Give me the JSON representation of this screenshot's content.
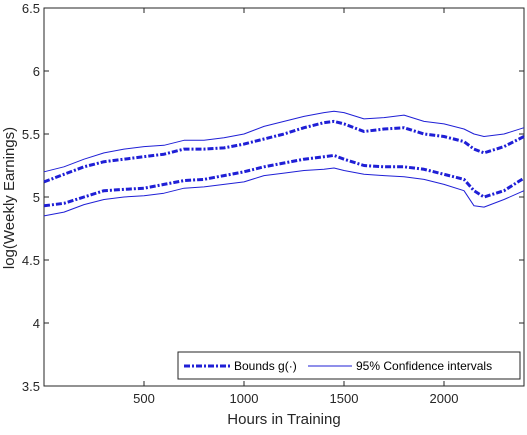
{
  "chart_data": {
    "type": "line",
    "title": "",
    "xlabel": "Hours in Training",
    "ylabel": "log(Weekly Earnings)",
    "xlim": [
      0,
      2400
    ],
    "ylim": [
      3.5,
      6.5
    ],
    "x_ticks": [
      500,
      1000,
      1500,
      2000
    ],
    "y_ticks": [
      3.5,
      4,
      4.5,
      5,
      5.5,
      6,
      6.5
    ],
    "x_tick_labels": [
      "500",
      "1000",
      "1500",
      "2000"
    ],
    "y_tick_labels": [
      "3.5",
      "4",
      "4.5",
      "5",
      "5.5",
      "6",
      "6.5"
    ],
    "grid": false,
    "legend_position": "bottom-right",
    "x": [
      0,
      100,
      200,
      300,
      400,
      500,
      600,
      700,
      800,
      900,
      1000,
      1100,
      1200,
      1300,
      1400,
      1450,
      1500,
      1600,
      1700,
      1800,
      1900,
      2000,
      2100,
      2150,
      2200,
      2300,
      2400
    ],
    "series": [
      {
        "name": "Bounds g(·)",
        "role": "upper-bound",
        "color": "#1f1fd6",
        "style": "dash-dot-thick",
        "values": [
          5.12,
          5.18,
          5.24,
          5.28,
          5.3,
          5.32,
          5.34,
          5.38,
          5.38,
          5.39,
          5.42,
          5.46,
          5.5,
          5.55,
          5.59,
          5.6,
          5.58,
          5.52,
          5.54,
          5.55,
          5.5,
          5.48,
          5.44,
          5.38,
          5.35,
          5.4,
          5.48
        ]
      },
      {
        "name": "",
        "role": "lower-bound",
        "color": "#1f1fd6",
        "style": "dash-dot-thick",
        "values": [
          4.93,
          4.95,
          5.0,
          5.05,
          5.06,
          5.07,
          5.1,
          5.13,
          5.14,
          5.17,
          5.2,
          5.24,
          5.27,
          5.3,
          5.32,
          5.33,
          5.3,
          5.25,
          5.24,
          5.24,
          5.22,
          5.18,
          5.14,
          5.05,
          5.0,
          5.05,
          5.15
        ]
      },
      {
        "name": "95% Confidence intervals",
        "role": "upper-ci",
        "color": "#1f1fd6",
        "style": "solid-thin",
        "values": [
          5.2,
          5.24,
          5.3,
          5.35,
          5.38,
          5.4,
          5.41,
          5.45,
          5.45,
          5.47,
          5.5,
          5.56,
          5.6,
          5.64,
          5.67,
          5.68,
          5.67,
          5.62,
          5.63,
          5.65,
          5.6,
          5.58,
          5.54,
          5.5,
          5.48,
          5.5,
          5.55
        ]
      },
      {
        "name": "",
        "role": "lower-ci",
        "color": "#1f1fd6",
        "style": "solid-thin",
        "values": [
          4.85,
          4.88,
          4.94,
          4.98,
          5.0,
          5.01,
          5.03,
          5.07,
          5.08,
          5.1,
          5.12,
          5.17,
          5.19,
          5.21,
          5.22,
          5.23,
          5.21,
          5.18,
          5.17,
          5.16,
          5.14,
          5.1,
          5.05,
          4.93,
          4.92,
          4.98,
          5.05
        ]
      }
    ],
    "legend": [
      {
        "label": "Bounds g(·)",
        "style": "dash-dot-thick"
      },
      {
        "label": "95% Confidence intervals",
        "style": "solid-thin"
      }
    ]
  }
}
